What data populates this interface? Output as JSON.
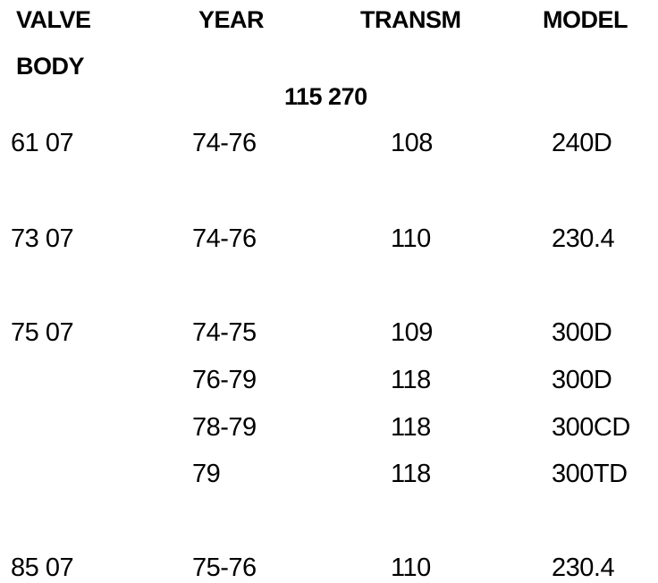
{
  "table": {
    "headers": [
      "VALVE BODY",
      "YEAR",
      "TRANSM",
      "MODEL"
    ],
    "subheading": "115 270",
    "rows": [
      [
        "61 07",
        "74-76",
        "108",
        "240D"
      ],
      [
        "73 07",
        "74-76",
        "110",
        "230.4"
      ],
      [
        "75 07",
        "74-75",
        "109",
        "300D"
      ],
      [
        null,
        "76-79",
        "118",
        "300D"
      ],
      [
        null,
        "78-79",
        "118",
        "300CD"
      ],
      [
        null,
        "79",
        "118",
        "300TD"
      ],
      [
        "85 07",
        "75-76",
        "110",
        "230.4"
      ]
    ]
  }
}
